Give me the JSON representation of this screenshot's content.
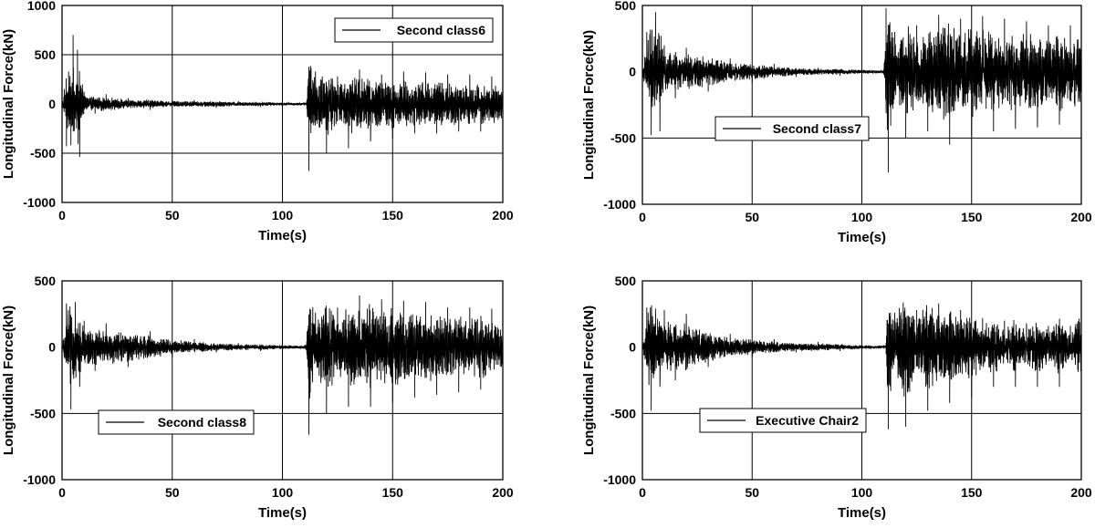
{
  "chart_data": [
    {
      "type": "line",
      "legend": "Second class6",
      "legend_position": "top-right",
      "xlabel": "Time(s)",
      "ylabel": "Longitudinal Force(kN)",
      "xlim": [
        0,
        200
      ],
      "ylim": [
        -1000,
        1000
      ],
      "xticks": [
        "0",
        "50",
        "100",
        "150",
        "200"
      ],
      "yticks": [
        "1000",
        "500",
        "0",
        "-500",
        "-1000"
      ],
      "grid": true,
      "series": [
        {
          "name": "Second class6",
          "x": [
            0,
            1,
            2,
            3,
            4,
            5,
            6,
            7,
            8,
            10,
            15,
            20,
            30,
            40,
            50,
            60,
            70,
            80,
            90,
            100,
            110,
            111,
            112,
            115,
            120,
            125,
            130,
            135,
            140,
            145,
            150,
            155,
            160,
            165,
            170,
            175,
            180,
            185,
            190,
            195,
            200
          ],
          "y": [
            0,
            150,
            -430,
            330,
            -420,
            700,
            -150,
            550,
            -540,
            120,
            -100,
            100,
            60,
            -60,
            40,
            40,
            -40,
            30,
            -30,
            20,
            15,
            30,
            -680,
            330,
            -500,
            280,
            -450,
            350,
            -380,
            300,
            -350,
            330,
            -300,
            320,
            -300,
            300,
            -280,
            300,
            -280,
            280,
            -240
          ]
        }
      ]
    },
    {
      "type": "line",
      "legend": "Second class7",
      "legend_position": "middle-center",
      "xlabel": "Time(s)",
      "ylabel": "Longitudinal Force(kN)",
      "xlim": [
        0,
        200
      ],
      "ylim": [
        -1000,
        500
      ],
      "xticks": [
        "0",
        "50",
        "100",
        "150",
        "200"
      ],
      "yticks": [
        "500",
        "0",
        "-500",
        "-1000"
      ],
      "grid": true,
      "series": [
        {
          "name": "Second class7",
          "x": [
            0,
            2,
            4,
            6,
            8,
            10,
            15,
            20,
            30,
            40,
            50,
            60,
            70,
            80,
            90,
            100,
            110,
            111,
            112,
            115,
            120,
            125,
            130,
            135,
            140,
            145,
            150,
            155,
            160,
            165,
            170,
            175,
            180,
            185,
            190,
            195,
            200
          ],
          "y": [
            0,
            300,
            -480,
            450,
            -450,
            200,
            -200,
            180,
            -150,
            100,
            -80,
            60,
            -40,
            30,
            -30,
            20,
            15,
            480,
            -760,
            300,
            -500,
            350,
            -450,
            430,
            -550,
            400,
            -480,
            420,
            -450,
            400,
            -430,
            380,
            -420,
            350,
            -400,
            350,
            -350
          ]
        }
      ]
    },
    {
      "type": "line",
      "legend": "Second class8",
      "legend_position": "bottom-left",
      "xlabel": "Time(s)",
      "ylabel": "Longitudinal Force(kN)",
      "xlim": [
        0,
        200
      ],
      "ylim": [
        -1000,
        500
      ],
      "xticks": [
        "0",
        "50",
        "100",
        "150",
        "200"
      ],
      "yticks": [
        "500",
        "0",
        "-500",
        "-1000"
      ],
      "grid": true,
      "series": [
        {
          "name": "Second class8",
          "x": [
            0,
            2,
            4,
            6,
            8,
            10,
            15,
            20,
            30,
            40,
            50,
            60,
            70,
            80,
            90,
            100,
            110,
            111,
            112,
            115,
            120,
            125,
            130,
            135,
            140,
            145,
            150,
            155,
            160,
            165,
            170,
            175,
            180,
            185,
            190,
            195,
            200
          ],
          "y": [
            0,
            330,
            -470,
            340,
            -300,
            200,
            -180,
            180,
            -150,
            120,
            -80,
            60,
            -40,
            30,
            -30,
            20,
            15,
            40,
            -660,
            260,
            -500,
            300,
            -450,
            390,
            -450,
            360,
            -420,
            350,
            -380,
            340,
            -360,
            300,
            -340,
            300,
            -320,
            290,
            -200
          ]
        }
      ]
    },
    {
      "type": "line",
      "legend": "Executive Chair2",
      "legend_position": "bottom-center",
      "xlabel": "Time(s)",
      "ylabel": "Longitudinal Force(kN)",
      "xlim": [
        0,
        200
      ],
      "ylim": [
        -1000,
        500
      ],
      "xticks": [
        "0",
        "50",
        "100",
        "150",
        "200"
      ],
      "yticks": [
        "500",
        "0",
        "-500",
        "-1000"
      ],
      "grid": true,
      "series": [
        {
          "name": "Executive Chair2",
          "x": [
            0,
            2,
            4,
            6,
            8,
            10,
            15,
            20,
            30,
            40,
            50,
            60,
            70,
            80,
            90,
            100,
            110,
            111,
            112,
            115,
            120,
            125,
            130,
            135,
            140,
            145,
            150,
            155,
            160,
            165,
            170,
            175,
            180,
            185,
            190,
            195,
            200
          ],
          "y": [
            0,
            300,
            -480,
            290,
            -300,
            280,
            -250,
            250,
            -150,
            100,
            -80,
            60,
            -40,
            40,
            -30,
            20,
            15,
            30,
            -620,
            260,
            -600,
            280,
            -480,
            330,
            -420,
            280,
            -380,
            220,
            -300,
            200,
            -300,
            180,
            -300,
            160,
            -300,
            160,
            -340
          ]
        }
      ]
    }
  ]
}
